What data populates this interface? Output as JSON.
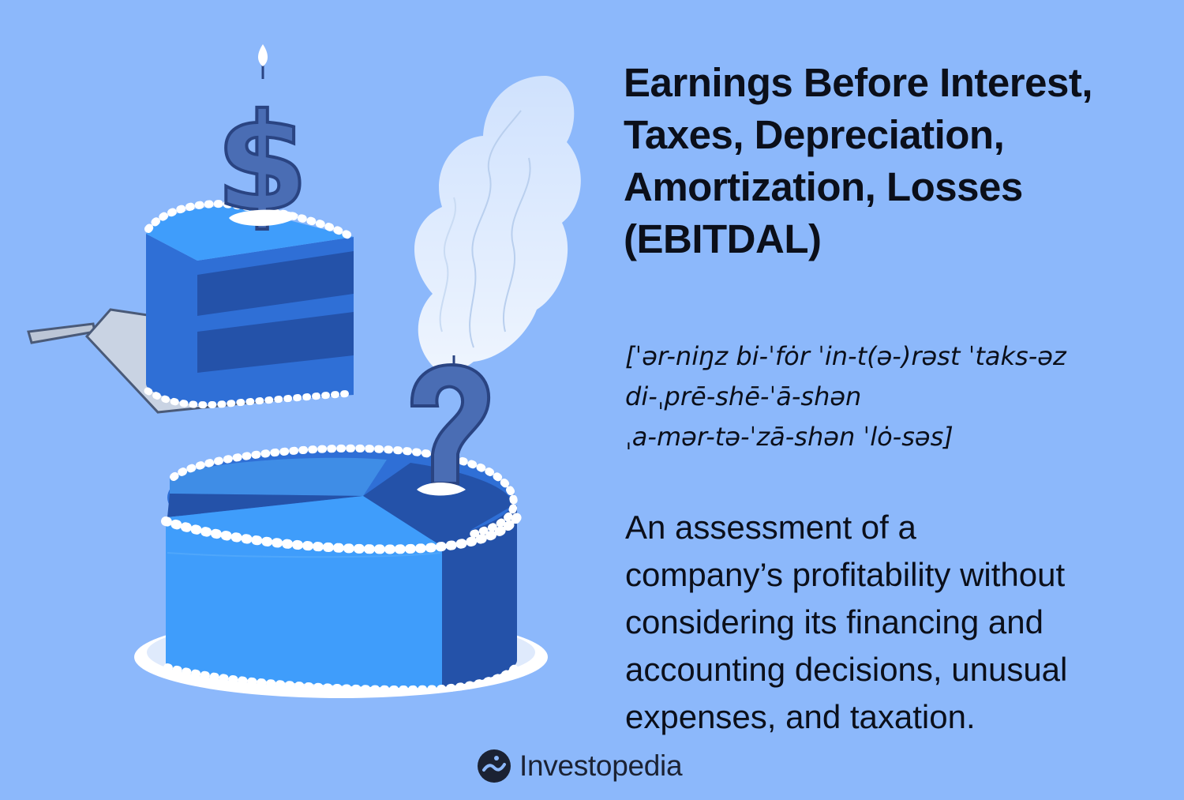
{
  "colors": {
    "background": "#8cb8fb",
    "text": "#0b0f1a",
    "cake_light": "#3f9dfb",
    "cake_mid": "#2f6fd6",
    "cake_dark": "#2452a9",
    "frosting": "#ffffff",
    "candle": "#4a6db4"
  },
  "title": {
    "lines": [
      "Earnings Before Interest,",
      "Taxes, Depreciation,",
      "Amortization, Losses",
      "(EBITDAL)"
    ]
  },
  "pronunciation": {
    "lines": [
      "[ˈər-niŋz bi-ˈfȯr ˈin-t(ə-)rəst ˈtaks-əz",
      "di-ˌprē-shē-ˈā-shən",
      "ˌa-mər-tə-ˈzā-shən ˈlȯ-səs]"
    ]
  },
  "definition": {
    "lines": [
      "An assessment of a",
      "company’s profitability without",
      "considering its financing and",
      "accounting decisions, unusual",
      "expenses, and taxation."
    ]
  },
  "brand": {
    "name": "Investopedia",
    "icon": "investopedia-logo-icon"
  },
  "illustration": {
    "slice_candle": "dollar-sign",
    "cake_candle": "question-mark"
  }
}
